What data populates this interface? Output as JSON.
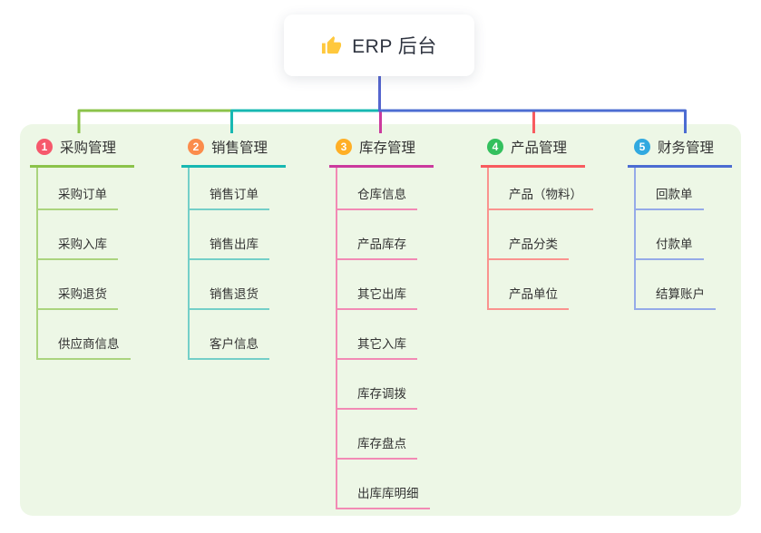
{
  "root": {
    "title": "ERP 后台",
    "icon": "thumbs-up-icon"
  },
  "branches": [
    {
      "index": "1",
      "label": "采购管理",
      "badge_color": "#F6586C",
      "line_color": "#8BC34A",
      "child_line_color": "#ABD47E",
      "children": [
        "采购订单",
        "采购入库",
        "采购退货",
        "供应商信息"
      ]
    },
    {
      "index": "2",
      "label": "销售管理",
      "badge_color": "#FB8C4C",
      "line_color": "#17B8B2",
      "child_line_color": "#74CFC8",
      "children": [
        "销售订单",
        "销售出库",
        "销售退货",
        "客户信息"
      ]
    },
    {
      "index": "3",
      "label": "库存管理",
      "badge_color": "#FFAF26",
      "line_color": "#CB3A9E",
      "child_line_color": "#F28AB5",
      "children": [
        "仓库信息",
        "产品库存",
        "其它出库",
        "其它入库",
        "库存调拨",
        "库存盘点",
        "出库库明细"
      ]
    },
    {
      "index": "4",
      "label": "产品管理",
      "badge_color": "#34C05E",
      "line_color": "#F85B5F",
      "child_line_color": "#FA938F",
      "children": [
        "产品（物料）",
        "产品分类",
        "产品单位"
      ]
    },
    {
      "index": "5",
      "label": "财务管理",
      "badge_color": "#31A9E0",
      "line_color": "#4C6CD2",
      "child_line_color": "#95AAE8",
      "children": [
        "回款单",
        "付款单",
        "结算账户"
      ]
    }
  ],
  "colors": {
    "panel_bg": "#EDF7E6",
    "root_connector": "#5565CE",
    "icon_fill": "#FFC83D",
    "text": "#333333"
  }
}
